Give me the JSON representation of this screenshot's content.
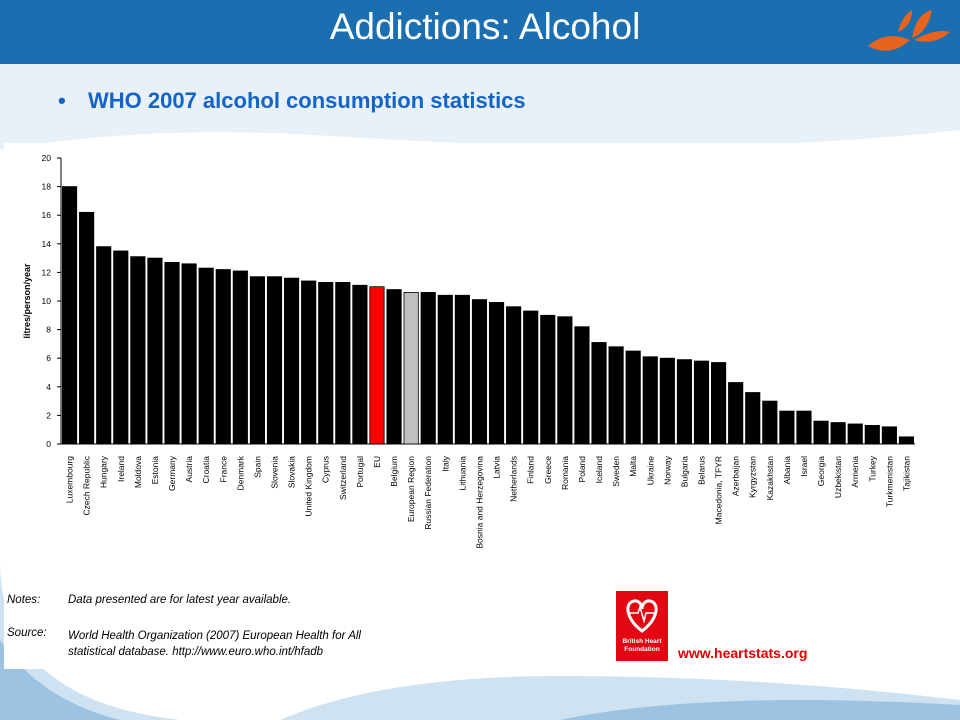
{
  "slide": {
    "title": "Addictions: Alcohol",
    "bullet": "WHO 2007 alcohol consumption statistics",
    "colors": {
      "header": "#1b6fb0",
      "bullet_text": "#1464c8",
      "accent_logo": "#e8641e"
    }
  },
  "notes": {
    "notes_label": "Notes:",
    "notes_text": "Data presented are for latest year available.",
    "source_label": "Source:",
    "source_line1": "World Health Organization (2007) European Health for All",
    "source_line2": "statistical database. http://www.euro.who.int/hfadb"
  },
  "footer": {
    "logo_text": "British Heart Foundation",
    "url": "www.heartstats.org"
  },
  "chart_data": {
    "type": "bar",
    "ylabel": "litres/person/year",
    "ylim": [
      0,
      20
    ],
    "yticks": [
      0,
      2,
      4,
      6,
      8,
      10,
      12,
      14,
      16,
      18,
      20
    ],
    "categories": [
      "Luxembourg",
      "Czech Republic",
      "Hungary",
      "Ireland",
      "Moldova",
      "Estonia",
      "Germany",
      "Austria",
      "Croatia",
      "France",
      "Denmark",
      "Spain",
      "Slovenia",
      "Slovakia",
      "United Kingdom",
      "Cyprus",
      "Switzerland",
      "Portugal",
      "EU",
      "Belgium",
      "European Region",
      "Russian Federation",
      "Italy",
      "Lithuania",
      "Bosnia and Herzegovina",
      "Latvia",
      "Netherlands",
      "Finland",
      "Greece",
      "Romania",
      "Poland",
      "Iceland",
      "Sweden",
      "Malta",
      "Ukraine",
      "Norway",
      "Bulgaria",
      "Belarus",
      "Macedonia, TFYR",
      "Azerbaijan",
      "Kyrgyzstan",
      "Kazakhstan",
      "Albania",
      "Israel",
      "Georgia",
      "Uzbekistan",
      "Armenia",
      "Turkey",
      "Turkmenistan",
      "Tajikistan"
    ],
    "values": [
      18.0,
      16.2,
      13.8,
      13.5,
      13.1,
      13.0,
      12.7,
      12.6,
      12.3,
      12.2,
      12.1,
      11.7,
      11.7,
      11.6,
      11.4,
      11.3,
      11.3,
      11.1,
      11.0,
      10.8,
      10.6,
      10.6,
      10.4,
      10.4,
      10.1,
      9.9,
      9.6,
      9.3,
      9.0,
      8.9,
      8.2,
      7.1,
      6.8,
      6.5,
      6.1,
      6.0,
      5.9,
      5.8,
      5.7,
      4.3,
      3.6,
      3.0,
      2.3,
      2.3,
      1.6,
      1.5,
      1.4,
      1.3,
      1.2,
      0.5
    ],
    "highlight": {
      "EU": "#ff0000",
      "European Region": "#c0c0c0"
    },
    "bar_color": "#000000",
    "grid": false
  }
}
